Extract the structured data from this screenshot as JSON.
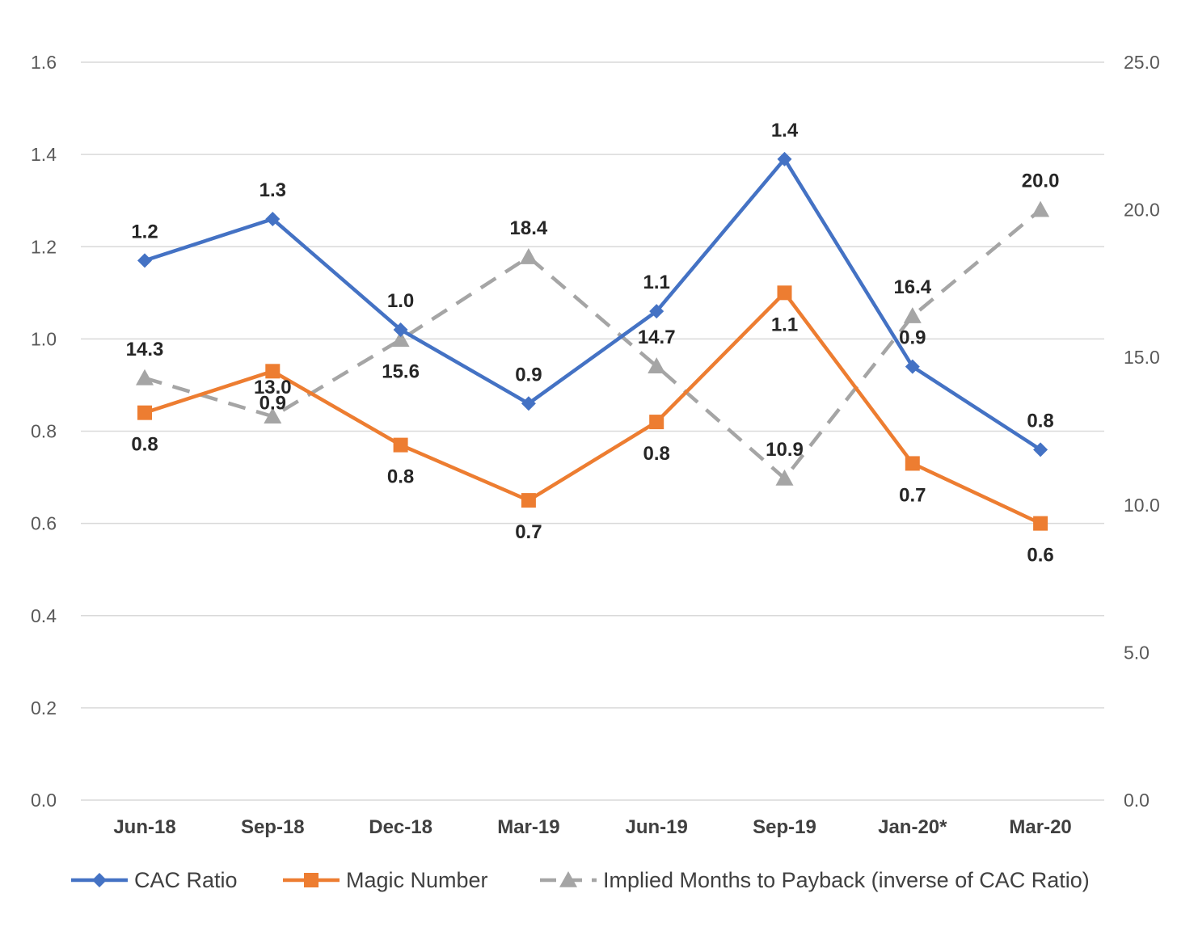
{
  "chart_data": {
    "type": "line",
    "categories": [
      "Jun-18",
      "Sep-18",
      "Dec-18",
      "Mar-19",
      "Jun-19",
      "Sep-19",
      "Jan-20*",
      "Mar-20"
    ],
    "y_left": {
      "min": 0,
      "max": 1.6,
      "ticks": [
        "0.0",
        "0.2",
        "0.4",
        "0.6",
        "0.8",
        "1.0",
        "1.2",
        "1.4",
        "1.6"
      ]
    },
    "y_right": {
      "min": 0,
      "max": 25,
      "ticks": [
        "0.0",
        "5.0",
        "10.0",
        "15.0",
        "20.0",
        "25.0"
      ]
    },
    "grid": true,
    "legend_position": "bottom",
    "series": [
      {
        "name": "CAC Ratio",
        "axis": "left",
        "color": "#4472c4",
        "marker": "diamond",
        "dash": false,
        "values": [
          1.17,
          1.26,
          1.02,
          0.86,
          1.06,
          1.39,
          0.94,
          0.76
        ],
        "labels": [
          "1.2",
          "1.3",
          "1.0",
          "0.9",
          "1.1",
          "1.4",
          "0.9",
          "0.8"
        ],
        "label_pos": [
          "above",
          "above",
          "above",
          "above",
          "above",
          "above",
          "above",
          "above"
        ]
      },
      {
        "name": "Magic Number",
        "axis": "left",
        "color": "#ed7d31",
        "marker": "square",
        "dash": false,
        "values": [
          0.84,
          0.93,
          0.77,
          0.65,
          0.82,
          1.1,
          0.73,
          0.6
        ],
        "labels": [
          "0.8",
          "0.9",
          "0.8",
          "0.7",
          "0.8",
          "1.1",
          "0.7",
          "0.6"
        ],
        "label_pos": [
          "below",
          "below",
          "below",
          "below",
          "below",
          "below",
          "below",
          "below"
        ]
      },
      {
        "name": "Implied Months to Payback (inverse of CAC Ratio)",
        "axis": "right",
        "color": "#a5a5a5",
        "marker": "triangle",
        "dash": true,
        "values": [
          14.3,
          13.0,
          15.6,
          18.4,
          14.7,
          10.9,
          16.4,
          20.0
        ],
        "labels": [
          "14.3",
          "13.0",
          "15.6",
          "18.4",
          "14.7",
          "10.9",
          "16.4",
          "20.0"
        ],
        "label_pos": [
          "above",
          "above",
          "below",
          "above",
          "above",
          "above",
          "above",
          "above"
        ]
      }
    ]
  }
}
